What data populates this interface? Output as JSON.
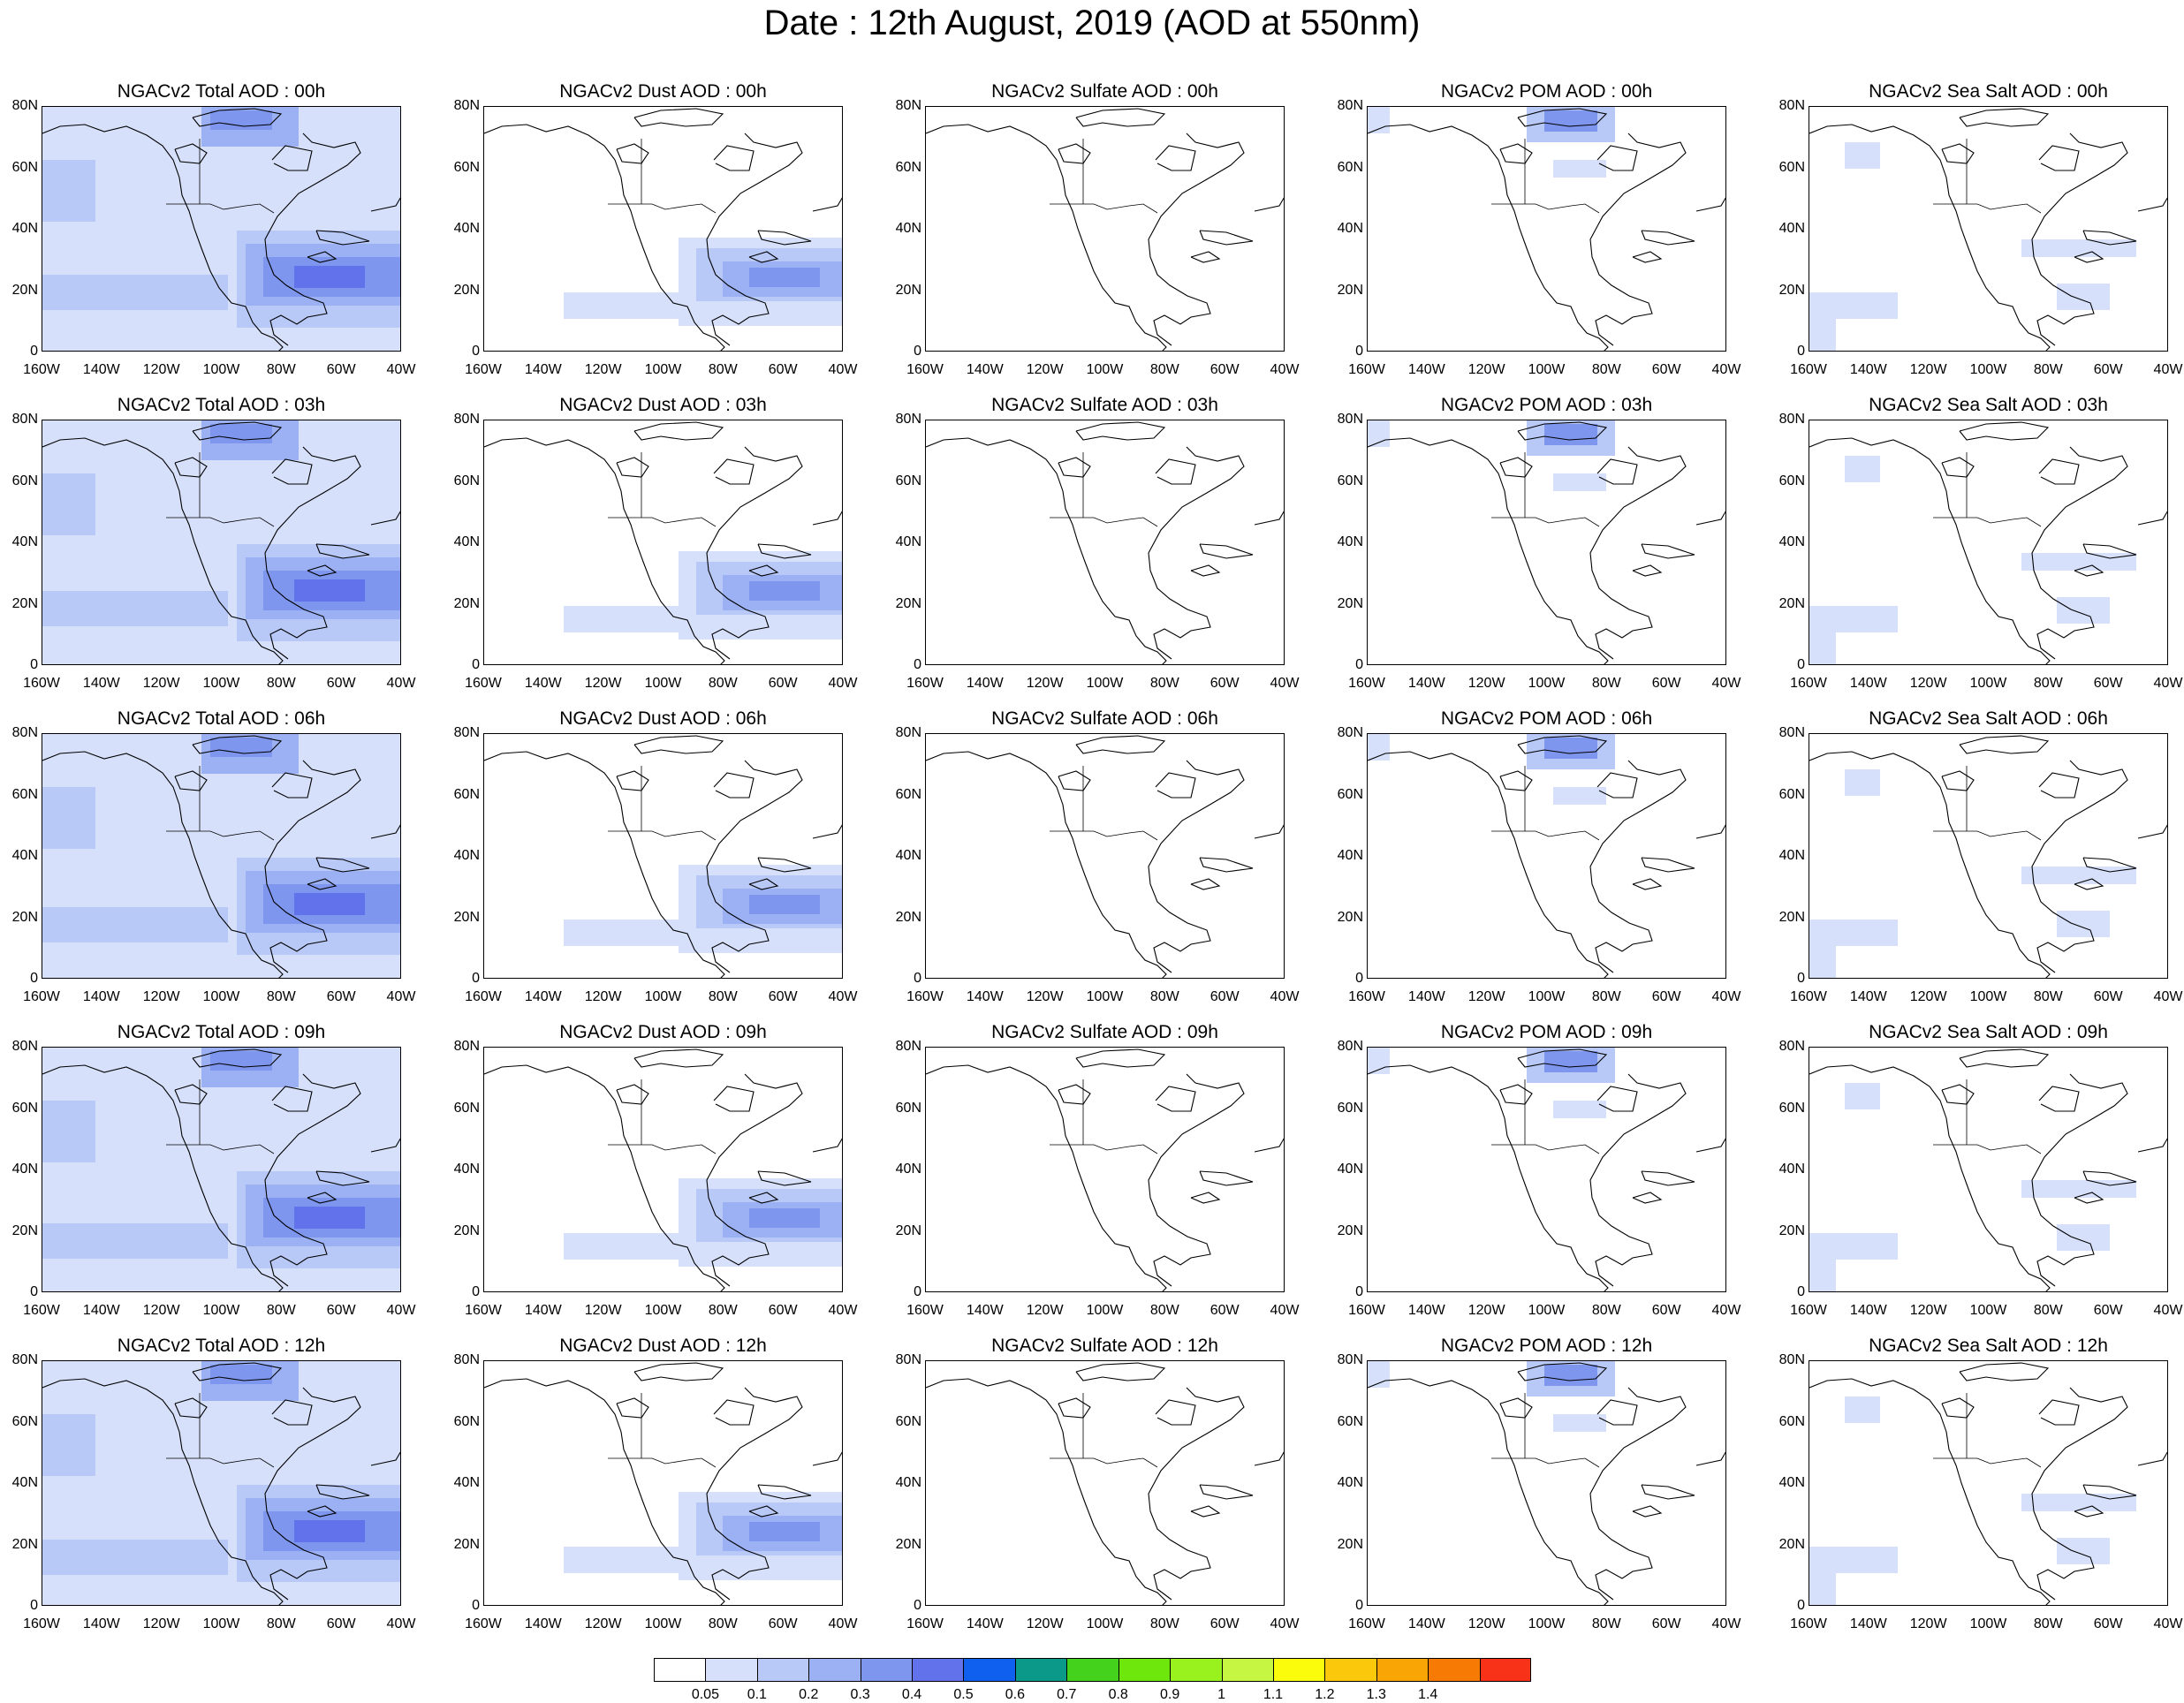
{
  "title": "Date : 12th August, 2019 (AOD at 550nm)",
  "y_ticks": [
    "80N",
    "60N",
    "40N",
    "20N",
    "0"
  ],
  "x_ticks": [
    "160W",
    "140W",
    "120W",
    "100W",
    "80W",
    "60W",
    "40W"
  ],
  "panels": [
    [
      "NGACv2 Total AOD : 00h",
      "NGACv2 Dust AOD : 00h",
      "NGACv2 Sulfate AOD : 00h",
      "NGACv2 POM AOD : 00h",
      "NGACv2 Sea Salt AOD : 00h"
    ],
    [
      "NGACv2 Total AOD : 03h",
      "NGACv2 Dust AOD : 03h",
      "NGACv2 Sulfate AOD : 03h",
      "NGACv2 POM AOD : 03h",
      "NGACv2 Sea Salt AOD : 03h"
    ],
    [
      "NGACv2 Total AOD : 06h",
      "NGACv2 Dust AOD : 06h",
      "NGACv2 Sulfate AOD : 06h",
      "NGACv2 POM AOD : 06h",
      "NGACv2 Sea Salt AOD : 06h"
    ],
    [
      "NGACv2 Total AOD : 09h",
      "NGACv2 Dust AOD : 09h",
      "NGACv2 Sulfate AOD : 09h",
      "NGACv2 POM AOD : 09h",
      "NGACv2 Sea Salt  AOD : 09h"
    ],
    [
      "NGACv2 Total AOD  : 12h",
      "NGACv2 Dust AOD : 12h",
      "NGACv2 Sulfate AOD : 12h",
      "NGACv2 POM  AOD : 12h",
      "NGACv2 Sea Salt  AOD : 12h"
    ]
  ],
  "colorbar": {
    "colors": [
      "#ffffff",
      "#d6e0fb",
      "#b8c8f7",
      "#9bb1f3",
      "#7e96ee",
      "#6172ea",
      "#1060f0",
      "#0b9a8a",
      "#45d21c",
      "#6ee80c",
      "#99f21e",
      "#c6f542",
      "#fbfb0c",
      "#fbc80c",
      "#f9a505",
      "#f77a05",
      "#f73218"
    ],
    "labels": [
      "0.05",
      "0.1",
      "0.2",
      "0.3",
      "0.4",
      "0.5",
      "0.6",
      "0.7",
      "0.8",
      "0.9",
      "1",
      "1.1",
      "1.2",
      "1.3",
      "1.4"
    ]
  },
  "styles": {
    "land_line": "#000000",
    "aod_shades": [
      "#d6e0fb",
      "#b8c8f7",
      "#9bb1f3",
      "#7e96ee",
      "#6172ea"
    ]
  }
}
